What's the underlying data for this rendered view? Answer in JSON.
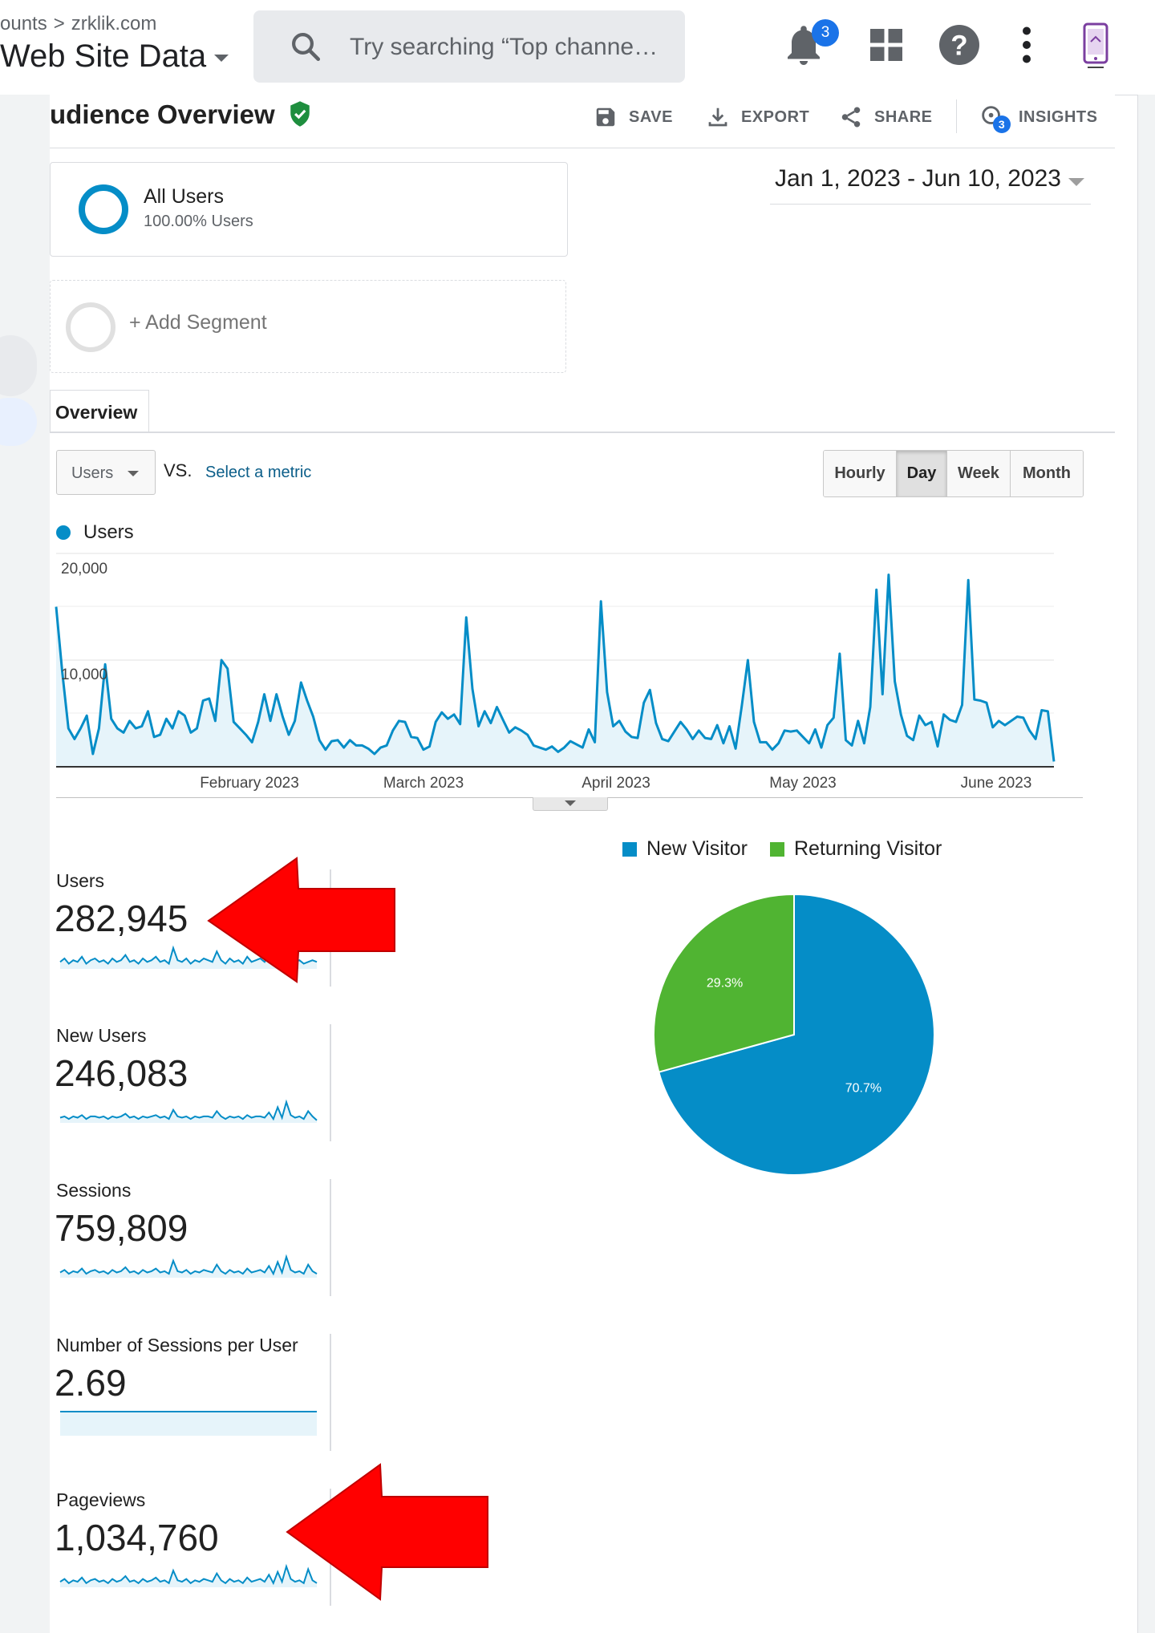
{
  "header": {
    "breadcrumb_prefix": "ounts",
    "breadcrumb_account": "zrklik.com",
    "property_name": "Web Site Data",
    "search_placeholder": "Try searching “Top channe…",
    "notifications_count": "3"
  },
  "report": {
    "title": "udience Overview",
    "actions": {
      "save": "SAVE",
      "export": "EXPORT",
      "share": "SHARE",
      "insights": "INSIGHTS",
      "insights_count": "3"
    }
  },
  "segments": {
    "all_users": {
      "name": "All Users",
      "sub": "100.00% Users"
    },
    "add_segment": "+ Add Segment"
  },
  "date_range": "Jan 1, 2023 - Jun 10, 2023",
  "tabs": {
    "overview": "Overview"
  },
  "controls": {
    "metric": "Users",
    "vs": "VS.",
    "select_metric": "Select a metric",
    "granularity": [
      "Hourly",
      "Day",
      "Week",
      "Month"
    ],
    "granularity_active": "Day"
  },
  "colors": {
    "series": "#058dc7",
    "returning": "#50b432",
    "arrow": "#ff0000",
    "fill": "#e6f4fa"
  },
  "chart_data": [
    {
      "type": "line",
      "series_name": "Users",
      "y_ticks": [
        "20,000",
        "10,000"
      ],
      "ylim": [
        0,
        20000
      ],
      "x_ticks": [
        "February 2023",
        "March 2023",
        "April 2023",
        "May 2023",
        "June 2023"
      ],
      "x_range": [
        "2023-01-01",
        "2023-06-10"
      ],
      "series": [
        {
          "name": "Users",
          "values": [
            15000,
            8900,
            3600,
            2600,
            3600,
            4800,
            1200,
            3600,
            9600,
            4500,
            3600,
            3200,
            4300,
            3600,
            3800,
            5200,
            2800,
            3000,
            4500,
            3600,
            5200,
            4800,
            3200,
            3600,
            6200,
            6400,
            4300,
            10000,
            9200,
            4200,
            3600,
            3000,
            2300,
            4200,
            6800,
            4300,
            6800,
            4700,
            3000,
            4300,
            7900,
            6200,
            4700,
            2500,
            1600,
            2400,
            2500,
            1800,
            2500,
            2000,
            2000,
            1700,
            1200,
            1800,
            2000,
            3400,
            4300,
            4200,
            2800,
            2700,
            1600,
            1900,
            4200,
            5100,
            4500,
            4900,
            4000,
            14000,
            7300,
            3800,
            5200,
            4100,
            5600,
            4400,
            3200,
            3700,
            3400,
            3000,
            2000,
            1800,
            1600,
            1900,
            1400,
            1800,
            2400,
            2100,
            1800,
            3500,
            2300,
            15500,
            7000,
            3800,
            4300,
            3300,
            2800,
            2700,
            6000,
            7200,
            4100,
            2600,
            2400,
            3300,
            4200,
            3500,
            2600,
            3400,
            2700,
            2600,
            3900,
            2200,
            3800,
            1700,
            5700,
            10000,
            4200,
            2300,
            2300,
            1600,
            2200,
            3400,
            3300,
            3400,
            2800,
            2200,
            3500,
            1800,
            3900,
            4600,
            10600,
            2500,
            2000,
            4300,
            2200,
            5600,
            16600,
            6800,
            18000,
            8000,
            4900,
            2900,
            2500,
            4800,
            3900,
            4200,
            1900,
            4900,
            4400,
            4200,
            5800,
            17500,
            6300,
            6200,
            6000,
            3700,
            4300,
            3900,
            4300,
            4700,
            4600,
            3400,
            2600,
            5300,
            5200,
            500
          ]
        }
      ]
    },
    {
      "type": "pie",
      "legend_position": "top",
      "categories": [
        "New Visitor",
        "Returning Visitor"
      ],
      "values": [
        70.7,
        29.3
      ],
      "labels": [
        "70.7%",
        "29.3%"
      ]
    }
  ],
  "metrics": [
    {
      "label": "Users",
      "value": "282,945",
      "spark": [
        4,
        6,
        3,
        5,
        4,
        7,
        3,
        5,
        6,
        4,
        5,
        3,
        6,
        4,
        5,
        8,
        4,
        5,
        3,
        6,
        4,
        5,
        7,
        4,
        5,
        3,
        12,
        5,
        4,
        6,
        3,
        5,
        4,
        6,
        5,
        4,
        10,
        5,
        3,
        6,
        4,
        5,
        3,
        7,
        4,
        5,
        6,
        4,
        9,
        3,
        5,
        4,
        6,
        8,
        4,
        5,
        3,
        4,
        5,
        4
      ]
    },
    {
      "label": "New Users",
      "value": "246,083",
      "spark": [
        4,
        5,
        3,
        5,
        4,
        6,
        3,
        5,
        5,
        4,
        5,
        3,
        5,
        4,
        5,
        7,
        4,
        5,
        3,
        5,
        4,
        5,
        6,
        4,
        5,
        3,
        10,
        5,
        4,
        5,
        3,
        5,
        4,
        5,
        5,
        4,
        9,
        5,
        3,
        5,
        4,
        5,
        3,
        6,
        4,
        5,
        5,
        4,
        8,
        3,
        12,
        4,
        16,
        6,
        4,
        5,
        3,
        9,
        5,
        2
      ]
    },
    {
      "label": "Sessions",
      "value": "759,809",
      "spark": [
        4,
        6,
        3,
        5,
        4,
        7,
        3,
        5,
        6,
        4,
        5,
        3,
        6,
        4,
        5,
        8,
        4,
        5,
        3,
        6,
        4,
        5,
        7,
        4,
        5,
        3,
        13,
        5,
        4,
        6,
        3,
        5,
        4,
        6,
        5,
        4,
        10,
        5,
        3,
        6,
        4,
        5,
        3,
        7,
        4,
        5,
        6,
        4,
        9,
        3,
        12,
        4,
        16,
        6,
        4,
        5,
        3,
        10,
        5,
        3
      ]
    },
    {
      "label": "Number of Sessions per User",
      "value": "2.69",
      "spark": [
        5,
        5,
        5,
        5,
        5,
        5,
        5,
        5,
        5,
        5,
        5,
        5,
        5,
        5,
        5,
        5,
        5,
        5,
        5,
        5,
        5,
        5,
        5,
        5,
        5,
        5,
        5,
        5,
        5,
        5,
        5,
        5,
        5,
        5,
        5,
        5,
        5,
        5,
        5,
        5,
        5,
        5,
        5,
        5,
        5,
        5,
        5,
        5,
        5,
        5,
        5,
        5,
        5,
        5,
        5,
        5,
        5,
        5,
        5,
        5
      ]
    },
    {
      "label": "Pageviews",
      "value": "1,034,760",
      "spark": [
        4,
        6,
        3,
        5,
        4,
        7,
        3,
        5,
        6,
        4,
        5,
        3,
        6,
        4,
        5,
        8,
        4,
        5,
        3,
        6,
        4,
        5,
        7,
        4,
        5,
        3,
        12,
        5,
        4,
        6,
        3,
        5,
        4,
        6,
        5,
        4,
        10,
        5,
        3,
        6,
        4,
        5,
        3,
        7,
        4,
        5,
        6,
        4,
        9,
        3,
        11,
        4,
        15,
        6,
        4,
        5,
        3,
        13,
        5,
        3
      ]
    }
  ]
}
